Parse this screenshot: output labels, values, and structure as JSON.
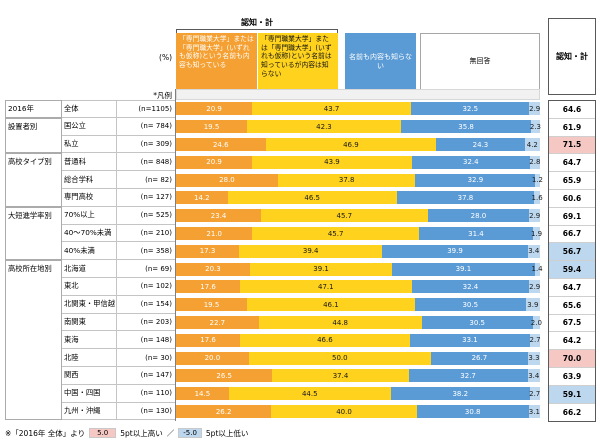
{
  "header": {
    "awareness_bracket_label": "認知・計",
    "percent_unit": "(%)",
    "legend_row_label": "*凡例",
    "total_column_label": "認知・計"
  },
  "footnote": {
    "prefix": "※「2016年 全体」より",
    "high_box": "5.0",
    "high_text": "5pt以上高い",
    "separator": "／",
    "low_box": "-5.0",
    "low_text": "5pt以上低い"
  },
  "colors": {
    "series_orange": "#F4A032",
    "series_yellow": "#FFD21E",
    "series_blue": "#5B9BD5",
    "series_lightblue": "#BDD7EE",
    "highlight_high": "#F5C8C4",
    "highlight_low": "#BDD7EE"
  },
  "chart_data": {
    "type": "bar",
    "stacked": true,
    "orientation": "horizontal",
    "unit": "%",
    "xlim": [
      0,
      100
    ],
    "total_column_label": "認知・計",
    "series": [
      {
        "name": "「専門職業大学」または「専門職大学」(いずれも仮称)という名前も内容も知っている",
        "color": "#F4A032",
        "text_color": "#FFFFFF"
      },
      {
        "name": "「専門職業大学」または「専門職大学」(いずれも仮称)という名前は知っているが内容は知らない",
        "color": "#FFD21E",
        "text_color": "#1A1A1A"
      },
      {
        "name": "名前も内容も知らない",
        "color": "#5B9BD5",
        "text_color": "#FFFFFF"
      },
      {
        "name": "無回答",
        "color": "#BDD7EE",
        "text_color": "#1A1A1A"
      }
    ],
    "rows": [
      {
        "group": "2016年",
        "group_span": 1,
        "label": "全体",
        "n": "(n=1105)",
        "values": [
          20.9,
          43.7,
          32.5,
          2.9
        ],
        "total": 64.6,
        "highlight": ""
      },
      {
        "group": "設置者別",
        "group_span": 2,
        "label": "国公立",
        "n": "(n= 784)",
        "values": [
          19.5,
          42.3,
          35.8,
          2.3
        ],
        "total": 61.9,
        "highlight": ""
      },
      {
        "label": "私立",
        "n": "(n= 309)",
        "values": [
          24.6,
          46.9,
          24.3,
          4.2
        ],
        "total": 71.5,
        "highlight": "high"
      },
      {
        "group": "高校タイプ別",
        "group_span": 3,
        "label": "普通科",
        "n": "(n= 848)",
        "values": [
          20.9,
          43.9,
          32.4,
          2.8
        ],
        "total": 64.7,
        "highlight": ""
      },
      {
        "label": "総合学科",
        "n": "(n= 82)",
        "values": [
          28.0,
          37.8,
          32.9,
          1.2
        ],
        "total": 65.9,
        "highlight": ""
      },
      {
        "label": "専門高校",
        "n": "(n= 127)",
        "values": [
          14.2,
          46.5,
          37.8,
          1.6
        ],
        "total": 60.6,
        "highlight": ""
      },
      {
        "group": "大短進学率別",
        "group_span": 3,
        "label": "70%以上",
        "n": "(n= 525)",
        "values": [
          23.4,
          45.7,
          28.0,
          2.9
        ],
        "total": 69.1,
        "highlight": ""
      },
      {
        "label": "40〜70%未満",
        "n": "(n= 210)",
        "values": [
          21.0,
          45.7,
          31.4,
          1.9
        ],
        "total": 66.7,
        "highlight": ""
      },
      {
        "label": "40%未満",
        "n": "(n= 358)",
        "values": [
          17.3,
          39.4,
          39.9,
          3.4
        ],
        "total": 56.7,
        "highlight": "low"
      },
      {
        "group": "高校所在地別",
        "group_span": 9,
        "label": "北海道",
        "n": "(n= 69)",
        "values": [
          20.3,
          39.1,
          39.1,
          1.4
        ],
        "total": 59.4,
        "highlight": "low"
      },
      {
        "label": "東北",
        "n": "(n= 102)",
        "values": [
          17.6,
          47.1,
          32.4,
          2.9
        ],
        "total": 64.7,
        "highlight": ""
      },
      {
        "label": "北関東・甲信越",
        "n": "(n= 154)",
        "values": [
          19.5,
          46.1,
          30.5,
          3.9
        ],
        "total": 65.6,
        "highlight": ""
      },
      {
        "label": "南関東",
        "n": "(n= 203)",
        "values": [
          22.7,
          44.8,
          30.5,
          2.0
        ],
        "total": 67.5,
        "highlight": ""
      },
      {
        "label": "東海",
        "n": "(n= 148)",
        "values": [
          17.6,
          46.6,
          33.1,
          2.7
        ],
        "total": 64.2,
        "highlight": ""
      },
      {
        "label": "北陸",
        "n": "(n= 30)",
        "values": [
          20.0,
          50.0,
          26.7,
          3.3
        ],
        "total": 70.0,
        "highlight": "high"
      },
      {
        "label": "関西",
        "n": "(n= 147)",
        "values": [
          26.5,
          37.4,
          32.7,
          3.4
        ],
        "total": 63.9,
        "highlight": ""
      },
      {
        "label": "中国・四国",
        "n": "(n= 110)",
        "values": [
          14.5,
          44.5,
          38.2,
          2.7
        ],
        "total": 59.1,
        "highlight": "low"
      },
      {
        "label": "九州・沖縄",
        "n": "(n= 130)",
        "values": [
          26.2,
          40.0,
          30.8,
          3.1
        ],
        "total": 66.2,
        "highlight": ""
      }
    ]
  }
}
